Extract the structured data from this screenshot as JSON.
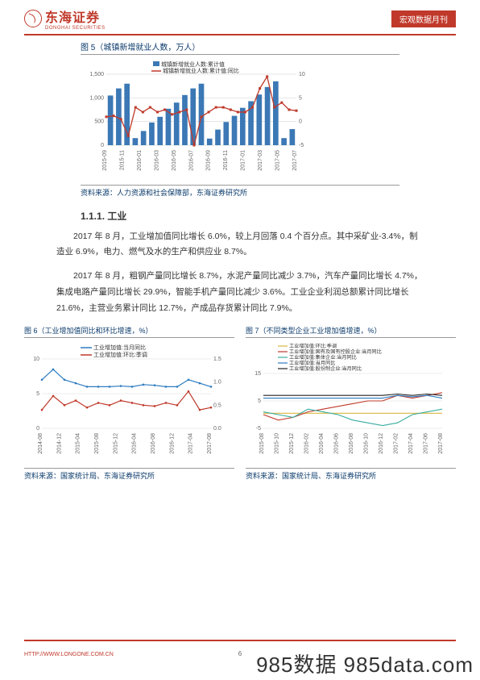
{
  "header": {
    "logo_text": "东海证券",
    "logo_sub": "DONGHAI SECURITIES",
    "badge": "宏观数据月刊"
  },
  "fig5": {
    "title": "图 5（城镇新增就业人数，万人）",
    "source": "资料来源：人力资源和社会保障部，东海证券研究所",
    "legend": [
      "城镇新增就业人数:累计值",
      "城镇新增就业人数:累计值:同比"
    ],
    "colors": {
      "bar": "#3b78b5",
      "line": "#c0392b",
      "grid": "#cccccc",
      "axis": "#666666"
    },
    "categories": [
      "2015-09",
      "2015-11",
      "2016-01",
      "2016-03",
      "2016-05",
      "2016-07",
      "2016-09",
      "2016-11",
      "2017-01",
      "2017-03",
      "2017-05",
      "2017-07"
    ],
    "bar_values": [
      1050,
      1200,
      1300,
      150,
      300,
      480,
      600,
      770,
      900,
      1060,
      1200,
      1300,
      140,
      330,
      490,
      620,
      790,
      930,
      1070,
      1230,
      1350,
      150,
      340
    ],
    "line_values": [
      1,
      1.2,
      0.5,
      -3,
      3,
      2,
      3,
      2,
      2.5,
      1.5,
      2,
      2.5,
      -5,
      1,
      2,
      3,
      3,
      2.5,
      2,
      2,
      3,
      7,
      9.5,
      3,
      4,
      2.5,
      2.3
    ],
    "ylim_left": [
      0,
      1500
    ],
    "ytick_left": [
      0,
      500,
      1000,
      1500
    ],
    "ylim_right": [
      -5,
      10
    ],
    "ytick_right": [
      -5,
      0,
      5,
      10
    ]
  },
  "section": {
    "heading": "1.1.1. 工业"
  },
  "para1": "2017 年 8 月，工业增加值同比增长 6.0%，较上月回落 0.4 个百分点。其中采矿业-3.4%，制造业 6.9%，电力、燃气及水的生产和供应业 8.7%。",
  "para2": "2017 年 8 月，粗钢产量同比增长 8.7%，水泥产量同比减少 3.7%，汽车产量同比增长 4.7%，集成电路产量同比增长 29.9%，智能手机产量同比减少 3.6%。工业企业利润总额累计同比增长 21.6%，主营业务累计同比 12.7%，产成品存货累计同比 7.9%。",
  "fig6": {
    "title": "图 6（工业增加值同比和环比增速，%）",
    "source": "资料来源：国家统计局、东海证券研究所",
    "legend": [
      "工业增加值:当月同比",
      "工业增加值:环比:季调"
    ],
    "colors": {
      "l1": "#2e7cc0",
      "l2": "#c0392b",
      "grid": "#dddddd"
    },
    "categories": [
      "2014-08",
      "2014-12",
      "2015-04",
      "2015-08",
      "2015-12",
      "2016-04",
      "2016-08",
      "2016-12",
      "2017-04",
      "2017-08"
    ],
    "l1_vals": [
      7,
      8.5,
      7,
      6.5,
      6,
      6,
      6,
      6.1,
      6,
      6.3,
      6.2,
      6,
      6,
      7,
      6.5,
      6
    ],
    "l2_vals": [
      0.4,
      0.7,
      0.5,
      0.6,
      0.45,
      0.55,
      0.5,
      0.6,
      0.55,
      0.5,
      0.48,
      0.55,
      0.5,
      0.8,
      0.4,
      0.45
    ],
    "ylim_left": [
      0,
      10
    ],
    "ytick_left": [
      0,
      5,
      10
    ],
    "ylim_right": [
      0,
      1.5
    ],
    "ytick_right": [
      0,
      0.5,
      1.0,
      1.5
    ]
  },
  "fig7": {
    "title": "图 7（不同类型企业工业增加值增速，%）",
    "source": "资料来源：国家统计局、东海证券研究所",
    "legend": [
      "工业增加值:环比:季调",
      "工业增加值:国有及国有控股企业:当月同比",
      "工业增加值:集体企业:当月同比",
      "工业增加值:当月同比",
      "工业增加值:股份制企业:当月同比"
    ],
    "colors": {
      "s1": "#d9b840",
      "s2": "#c0392b",
      "s3": "#39ada0",
      "s4": "#2e7cc0",
      "s5": "#222222",
      "grid": "#dddddd"
    },
    "categories": [
      "2015-08",
      "2015-10",
      "2015-12",
      "2016-02",
      "2016-04",
      "2016-06",
      "2016-08",
      "2016-10",
      "2016-12",
      "2017-02",
      "2017-04",
      "2017-06",
      "2017-08"
    ],
    "ylim": [
      -5,
      15
    ],
    "yticks": [
      -5,
      5,
      15
    ],
    "series": {
      "s1": [
        0.5,
        0.5,
        0.5,
        0.5,
        0.5,
        0.5,
        0.5,
        0.5,
        0.5,
        0.5,
        0.5,
        0.5,
        0.5
      ],
      "s2": [
        0,
        -2,
        -1,
        1,
        2,
        3,
        4,
        5,
        5,
        7,
        6,
        7,
        8
      ],
      "s3": [
        1,
        0,
        -1,
        2,
        1,
        0,
        -2,
        -3,
        -4,
        -3,
        0,
        1,
        2
      ],
      "s4": [
        6,
        6,
        6,
        6,
        6,
        6,
        6,
        6,
        6,
        7,
        6.5,
        7,
        6
      ],
      "s5": [
        7,
        7,
        7,
        7,
        7,
        7,
        7,
        7,
        7,
        7.5,
        7,
        7.5,
        7
      ]
    }
  },
  "footer": {
    "url": "HTTP://WWW.LONGONE.COM.CN",
    "page": "6",
    "watermark": "985数据  985data.com"
  }
}
